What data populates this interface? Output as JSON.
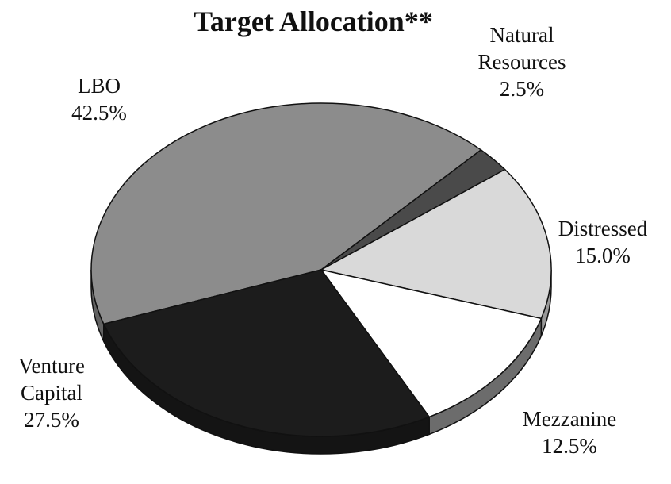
{
  "chart_data": {
    "type": "pie",
    "title": "Target Allocation**",
    "categories": [
      "LBO",
      "Natural Resources",
      "Distressed",
      "Mezzanine",
      "Venture Capital"
    ],
    "values": [
      42.5,
      2.5,
      15.0,
      12.5,
      27.5
    ],
    "value_labels": [
      "42.5%",
      "2.5%",
      "15.0%",
      "12.5%",
      "27.5%"
    ],
    "colors": [
      "#8c8c8c",
      "#4a4a4a",
      "#d9d9d9",
      "#ffffff",
      "#1c1c1c"
    ]
  }
}
